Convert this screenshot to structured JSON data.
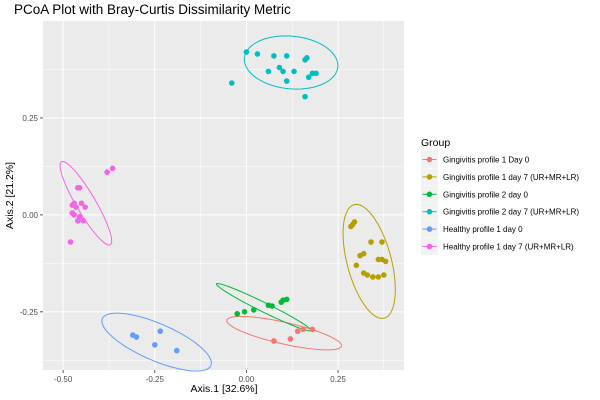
{
  "chart_data": {
    "type": "scatter",
    "title": "PCoA Plot with Bray-Curtis Dissimilarity Metric",
    "xlabel": "Axis.1   [32.6%]",
    "ylabel": "Axis.2   [21.2%]",
    "xlim": [
      -0.555,
      0.43
    ],
    "ylim": [
      -0.4,
      0.5
    ],
    "xticks": [
      -0.5,
      -0.25,
      0.0,
      0.25
    ],
    "xtick_labels": [
      "-0.50",
      "-0.25",
      "0.00",
      "0.25"
    ],
    "yticks": [
      -0.25,
      0.0,
      0.25
    ],
    "ytick_labels": [
      "-0.25",
      "0.00",
      "0.25"
    ],
    "grid": true,
    "legend_title": "Group",
    "legend_position": "right",
    "series": [
      {
        "name": "Gingivitis profile 1 Day 0",
        "color": "#F8766D",
        "ellipse": {
          "cx": 0.103,
          "cy": -0.305,
          "rx": 0.16,
          "ry": 0.028,
          "angle": -12
        },
        "points": [
          [
            0.075,
            -0.325
          ],
          [
            0.12,
            -0.32
          ],
          [
            0.14,
            -0.3
          ],
          [
            0.155,
            -0.295
          ],
          [
            0.18,
            -0.295
          ]
        ]
      },
      {
        "name": "Gingivitis profile 1 day 7 (UR+MR+LR)",
        "color": "#B79F00",
        "ellipse": {
          "cx": 0.335,
          "cy": -0.12,
          "rx": 0.152,
          "ry": 0.06,
          "angle": -74
        },
        "points": [
          [
            0.29,
            -0.025
          ],
          [
            0.295,
            -0.018
          ],
          [
            0.285,
            -0.03
          ],
          [
            0.31,
            -0.105
          ],
          [
            0.32,
            -0.1
          ],
          [
            0.3,
            -0.13
          ],
          [
            0.34,
            -0.07
          ],
          [
            0.37,
            -0.07
          ],
          [
            0.36,
            -0.115
          ],
          [
            0.37,
            -0.115
          ],
          [
            0.32,
            -0.15
          ],
          [
            0.33,
            -0.155
          ],
          [
            0.345,
            -0.16
          ],
          [
            0.36,
            -0.16
          ],
          [
            0.375,
            -0.155
          ],
          [
            0.38,
            -0.12
          ]
        ]
      },
      {
        "name": "Gingivitis profile 2 day 0",
        "color": "#00BA38",
        "ellipse": {
          "cx": 0.047,
          "cy": -0.238,
          "rx": 0.142,
          "ry": 0.012,
          "angle": -25
        },
        "points": [
          [
            -0.025,
            -0.255
          ],
          [
            -0.005,
            -0.25
          ],
          [
            0.02,
            -0.245
          ],
          [
            0.06,
            -0.233
          ],
          [
            0.07,
            -0.235
          ],
          [
            0.095,
            -0.225
          ],
          [
            0.1,
            -0.22
          ],
          [
            0.11,
            -0.218
          ]
        ]
      },
      {
        "name": "Gingivitis profile 2 day 7 (UR+MR+LR)",
        "color": "#00BFC4",
        "ellipse": {
          "cx": 0.122,
          "cy": 0.393,
          "rx": 0.128,
          "ry": 0.068,
          "angle": -5
        },
        "points": [
          [
            -0.04,
            0.34
          ],
          [
            0.0,
            0.42
          ],
          [
            0.03,
            0.415
          ],
          [
            0.06,
            0.37
          ],
          [
            0.075,
            0.41
          ],
          [
            0.09,
            0.38
          ],
          [
            0.1,
            0.37
          ],
          [
            0.11,
            0.41
          ],
          [
            0.11,
            0.345
          ],
          [
            0.13,
            0.37
          ],
          [
            0.16,
            0.4
          ],
          [
            0.165,
            0.405
          ],
          [
            0.17,
            0.355
          ],
          [
            0.18,
            0.365
          ],
          [
            0.19,
            0.365
          ],
          [
            0.16,
            0.305
          ]
        ]
      },
      {
        "name": "Healthy profile 1 day 0",
        "color": "#619CFF",
        "ellipse": {
          "cx": -0.245,
          "cy": -0.328,
          "rx": 0.16,
          "ry": 0.048,
          "angle": -22
        },
        "points": [
          [
            -0.31,
            -0.31
          ],
          [
            -0.3,
            -0.315
          ],
          [
            -0.235,
            -0.3
          ],
          [
            -0.25,
            -0.335
          ],
          [
            -0.19,
            -0.35
          ]
        ]
      },
      {
        "name": "Healthy profile 1 day 7 (UR+MR+LR)",
        "color": "#F564E3",
        "ellipse": {
          "cx": -0.438,
          "cy": 0.03,
          "rx": 0.126,
          "ry": 0.026,
          "angle": -58
        },
        "points": [
          [
            -0.365,
            0.12
          ],
          [
            -0.38,
            0.11
          ],
          [
            -0.46,
            0.07
          ],
          [
            -0.455,
            0.07
          ],
          [
            -0.47,
            0.03
          ],
          [
            -0.475,
            0.025
          ],
          [
            -0.465,
            0.02
          ],
          [
            -0.45,
            0.03
          ],
          [
            -0.44,
            0.02
          ],
          [
            -0.475,
            0.005
          ],
          [
            -0.47,
            0.0
          ],
          [
            -0.455,
            -0.005
          ],
          [
            -0.46,
            -0.015
          ],
          [
            -0.445,
            -0.015
          ],
          [
            -0.48,
            -0.07
          ]
        ]
      }
    ]
  }
}
